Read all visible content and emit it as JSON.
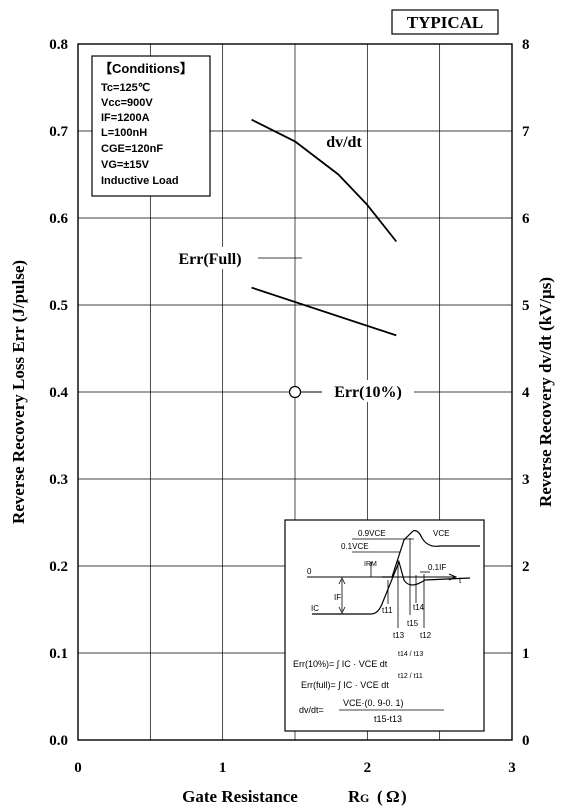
{
  "chart_data": {
    "type": "line",
    "badge": "TYPICAL",
    "xlabel_main": "Gate Resistance",
    "xlabel_sym": "R",
    "xlabel_sub": "G",
    "xlabel_unit_open": "(",
    "xlabel_unit": "Ω",
    "xlabel_unit_close": ")",
    "ylabel_left": "Reverse Recovery Loss   Err (J/pulse)",
    "ylabel_right": "Reverse Recovery   dv/dt (kV/μs)",
    "xlim": [
      0,
      3
    ],
    "ylim_left": [
      0,
      0.8
    ],
    "ylim_right": [
      0,
      8
    ],
    "x_ticks": [
      "0",
      "1",
      "2",
      "3"
    ],
    "y_left_ticks": [
      "0.0",
      "0.1",
      "0.2",
      "0.3",
      "0.4",
      "0.5",
      "0.6",
      "0.7",
      "0.8"
    ],
    "y_right_ticks": [
      "0",
      "1",
      "2",
      "3",
      "4",
      "5",
      "6",
      "7",
      "8"
    ],
    "grid": true,
    "series": [
      {
        "name": "dv/dt",
        "axis": "right",
        "x": [
          1.2,
          1.5,
          1.8,
          2.0,
          2.2
        ],
        "y": [
          7.13,
          6.88,
          6.5,
          6.15,
          5.73
        ]
      },
      {
        "name": "Err(Full)",
        "axis": "left",
        "x": [
          1.2,
          2.2
        ],
        "y": [
          0.52,
          0.465
        ]
      },
      {
        "name": "Err(10%)",
        "axis": "left",
        "x": [
          1.5
        ],
        "y": [
          0.4
        ]
      }
    ],
    "conditions": {
      "title": "【Conditions】",
      "lines": [
        "Tc=125℃",
        "Vcc=900V",
        "IF=1200A",
        "L=100nH",
        "CGE=120nF",
        "VG=±15V",
        "Inductive Load"
      ]
    },
    "inset": {
      "labels": {
        "v09": "0.9VCE",
        "v01": "0.1VCE",
        "vce": "VCE",
        "irm": "IRM",
        "zero": "0",
        "t": "t",
        "f01": "0.1IF",
        "if": "IF",
        "ic": "IC",
        "t11": "t11",
        "t13": "t13",
        "t14": "t14",
        "t15": "t15",
        "t12": "t12"
      },
      "formulas": {
        "err10": "Err(10%)= ∫ IC · VCE dt",
        "err10_lim": "t14 / t13",
        "errfull": "Err(full)= ∫ IC · VCE dt",
        "errfull_lim": "t12 / t11",
        "dvdt_lhs": "dv/dt=",
        "dvdt_num": "VCE·(0. 9-0. 1)",
        "dvdt_den": "t15-t13"
      }
    }
  }
}
